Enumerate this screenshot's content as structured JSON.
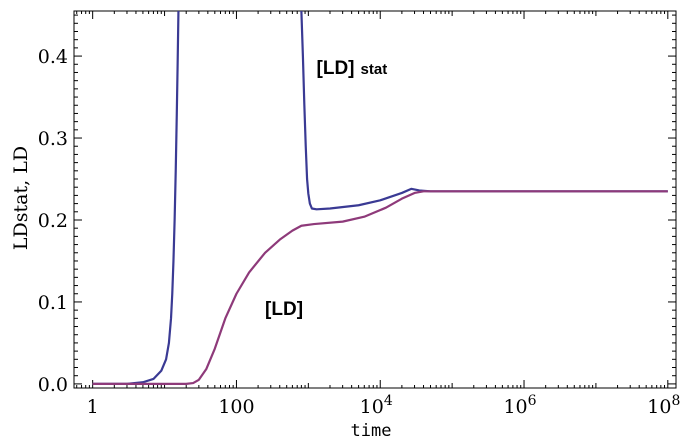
{
  "chart_data": {
    "type": "line",
    "xlabel": "time",
    "ylabel": "LDstat,  LD",
    "x_scale": "log10",
    "xlim": [
      0.55,
      130000000
    ],
    "ylim": [
      -0.005,
      0.455
    ],
    "x_ticks": [
      {
        "value": 1,
        "label": "1"
      },
      {
        "value": 100,
        "label": "100"
      },
      {
        "value": 10000,
        "label": "10",
        "exp": "4"
      },
      {
        "value": 1000000,
        "label": "10",
        "exp": "6"
      },
      {
        "value": 100000000,
        "label": "10",
        "exp": "8"
      }
    ],
    "y_ticks": [
      {
        "value": 0.0,
        "label": "0.0"
      },
      {
        "value": 0.1,
        "label": "0.1"
      },
      {
        "value": 0.2,
        "label": "0.2"
      },
      {
        "value": 0.3,
        "label": "0.3"
      },
      {
        "value": 0.4,
        "label": "0.4"
      }
    ],
    "grid": false,
    "annotations": [
      {
        "main": "[LD]",
        "sub": "stat",
        "x": 1300,
        "y": 0.378
      },
      {
        "main": "[LD]",
        "sub": "",
        "x": 250,
        "y": 0.084
      }
    ],
    "series": [
      {
        "name": "[LD] stat",
        "color": "#3a3a94",
        "points": [
          [
            1,
            0.0
          ],
          [
            3,
            0.0
          ],
          [
            5,
            0.002
          ],
          [
            7,
            0.006
          ],
          [
            9,
            0.016
          ],
          [
            10.5,
            0.03
          ],
          [
            11.5,
            0.05
          ],
          [
            12.3,
            0.08
          ],
          [
            12.8,
            0.11
          ],
          [
            13.3,
            0.15
          ],
          [
            13.8,
            0.2
          ],
          [
            14.3,
            0.26
          ],
          [
            14.8,
            0.33
          ],
          [
            15.2,
            0.39
          ],
          [
            15.6,
            0.455
          ]
        ],
        "points_after_gap": [
          [
            800,
            0.455
          ],
          [
            840,
            0.4
          ],
          [
            880,
            0.34
          ],
          [
            920,
            0.29
          ],
          [
            960,
            0.25
          ],
          [
            1000,
            0.232
          ],
          [
            1050,
            0.22
          ],
          [
            1120,
            0.214
          ],
          [
            1300,
            0.213
          ],
          [
            2000,
            0.214
          ],
          [
            5000,
            0.218
          ],
          [
            10000,
            0.224
          ],
          [
            20000,
            0.233
          ],
          [
            27000,
            0.238
          ],
          [
            35000,
            0.236
          ],
          [
            50000,
            0.235
          ],
          [
            100000,
            0.235
          ],
          [
            1000000,
            0.235
          ],
          [
            100000000,
            0.235
          ]
        ]
      },
      {
        "name": "[LD]",
        "color": "#8e3a7a",
        "points": [
          [
            1,
            0.0
          ],
          [
            10,
            0.0
          ],
          [
            20,
            0.0
          ],
          [
            25,
            0.001
          ],
          [
            30,
            0.005
          ],
          [
            38,
            0.018
          ],
          [
            50,
            0.043
          ],
          [
            70,
            0.08
          ],
          [
            100,
            0.11
          ],
          [
            150,
            0.136
          ],
          [
            250,
            0.16
          ],
          [
            400,
            0.176
          ],
          [
            600,
            0.187
          ],
          [
            800,
            0.193
          ],
          [
            1200,
            0.195
          ],
          [
            3000,
            0.198
          ],
          [
            6000,
            0.204
          ],
          [
            12000,
            0.215
          ],
          [
            20000,
            0.226
          ],
          [
            30000,
            0.233
          ],
          [
            40000,
            0.235
          ],
          [
            100000,
            0.235
          ],
          [
            100000000,
            0.235
          ]
        ]
      }
    ]
  }
}
